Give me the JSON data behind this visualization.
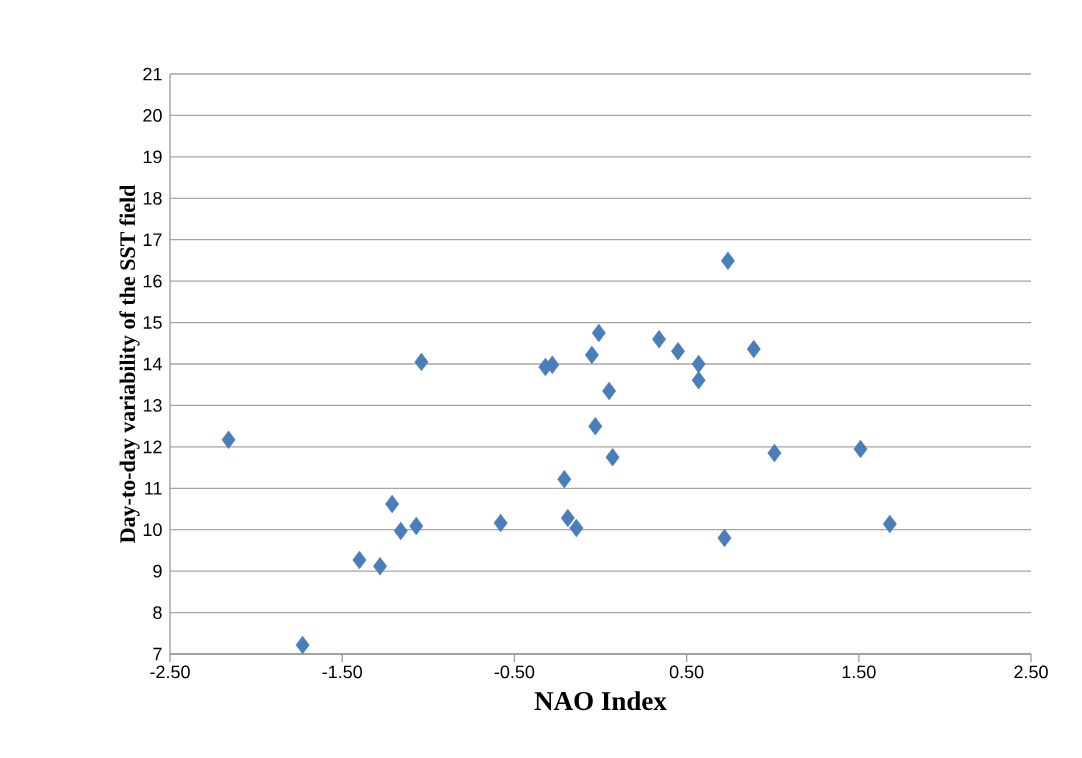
{
  "chart_data": {
    "type": "scatter",
    "xlabel": "NAO Index",
    "ylabel": "Day-to-day variability of the SST field",
    "x": [
      -2.16,
      -1.73,
      -1.4,
      -1.28,
      -1.21,
      -1.16,
      -1.07,
      -1.04,
      -0.58,
      -0.32,
      -0.28,
      -0.21,
      -0.19,
      -0.14,
      -0.05,
      -0.01,
      -0.03,
      0.05,
      0.07,
      0.34,
      0.45,
      0.57,
      0.57,
      0.72,
      0.89,
      0.74,
      1.01,
      1.51,
      1.68
    ],
    "values": [
      12.17,
      7.22,
      9.27,
      9.12,
      10.62,
      9.97,
      10.09,
      14.05,
      10.16,
      13.93,
      13.98,
      11.22,
      10.28,
      10.04,
      14.22,
      14.75,
      12.5,
      13.35,
      11.75,
      14.6,
      14.31,
      14.0,
      13.61,
      9.8,
      14.36,
      16.49,
      11.85,
      11.95,
      10.14
    ],
    "color": "#4a7ebb",
    "marker": "diamond",
    "grid": "y",
    "xlim": [
      -2.5,
      2.5
    ],
    "xticks": [
      {
        "value": -2.5,
        "label": "-2.50"
      },
      {
        "value": -1.5,
        "label": "-1.50"
      },
      {
        "value": -0.5,
        "label": "-0.50"
      },
      {
        "value": 0.5,
        "label": "0.50"
      },
      {
        "value": 1.5,
        "label": "1.50"
      },
      {
        "value": 2.5,
        "label": "2.50"
      }
    ],
    "ylim": [
      7,
      21
    ],
    "yticks": [
      7,
      8,
      9,
      10,
      11,
      12,
      13,
      14,
      15,
      16,
      17,
      18,
      19,
      20,
      21
    ]
  }
}
